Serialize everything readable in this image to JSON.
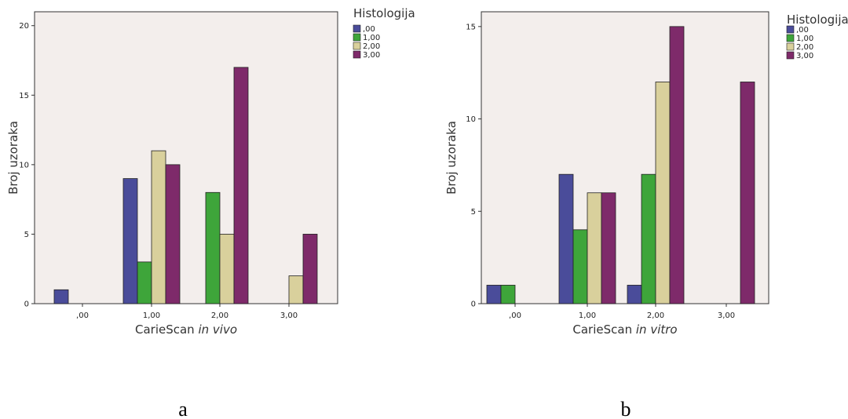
{
  "colors": {
    "plot_bg": "#f3eeec",
    "series": [
      "#4a4c9a",
      "#3ea53a",
      "#d9d09c",
      "#7e2a6a"
    ]
  },
  "chart_data": [
    {
      "type": "bar",
      "panel_label": "a",
      "categories": [
        ",00",
        "1,00",
        "2,00",
        "3,00"
      ],
      "xlabel_main": "CarieScan",
      "xlabel_italic": "in vivo",
      "ylabel": "Broj uzoraka",
      "ylim": [
        0,
        21
      ],
      "yticks": [
        0,
        5,
        10,
        15,
        20
      ],
      "legend_title": "Histologija",
      "series": [
        {
          "name": ",00",
          "values": [
            1,
            9,
            0,
            0
          ]
        },
        {
          "name": "1,00",
          "values": [
            0,
            3,
            8,
            0
          ]
        },
        {
          "name": "2,00",
          "values": [
            0,
            11,
            5,
            2
          ]
        },
        {
          "name": "3,00",
          "values": [
            0,
            10,
            17,
            5
          ]
        }
      ]
    },
    {
      "type": "bar",
      "panel_label": "b",
      "categories": [
        ",00",
        "1,00",
        "2,00",
        "3,00"
      ],
      "xlabel_main": "CarieScan",
      "xlabel_italic": "in vitro",
      "ylabel": "Broj uzoraka",
      "ylim": [
        0,
        15.8
      ],
      "yticks": [
        0,
        5,
        10,
        15
      ],
      "legend_title": "Histologija",
      "series": [
        {
          "name": ",00",
          "values": [
            1,
            7,
            1,
            0
          ]
        },
        {
          "name": "1,00",
          "values": [
            1,
            4,
            7,
            0
          ]
        },
        {
          "name": "2,00",
          "values": [
            0,
            6,
            12,
            0
          ]
        },
        {
          "name": "3,00",
          "values": [
            0,
            6,
            15,
            12
          ]
        }
      ]
    }
  ]
}
